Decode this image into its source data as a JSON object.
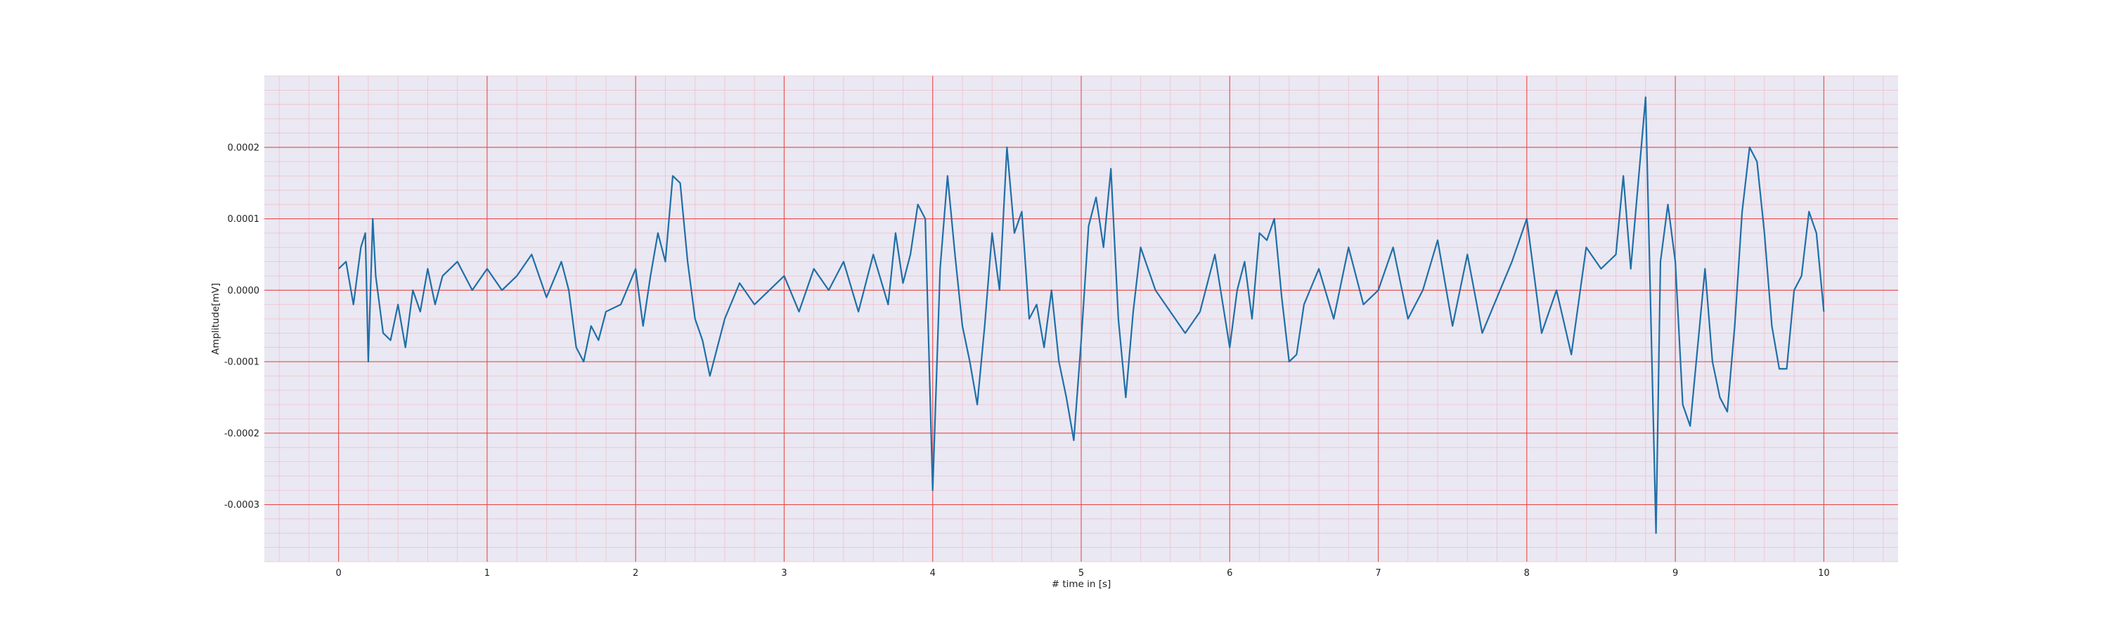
{
  "chart_data": {
    "type": "line",
    "title": "",
    "xlabel": "# time in [s]",
    "ylabel": "Amplitude[mV]",
    "xlim": [
      -0.5,
      10.5
    ],
    "ylim": [
      -0.00038,
      0.0003
    ],
    "x_ticks": [
      0,
      1,
      2,
      3,
      4,
      5,
      6,
      7,
      8,
      9,
      10
    ],
    "x_tick_labels": [
      "0",
      "1",
      "2",
      "3",
      "4",
      "5",
      "6",
      "7",
      "8",
      "9",
      "10"
    ],
    "y_ticks": [
      -0.0003,
      -0.0002,
      -0.0001,
      0.0,
      0.0001,
      0.0002
    ],
    "y_tick_labels": [
      "-0.0003",
      "-0.0002",
      "-0.0001",
      "0.0000",
      "0.0001",
      "0.0002"
    ],
    "grid": true,
    "major_grid_color": "#e74c4c",
    "minor_grid_color": "#f4a6b4",
    "background_color": "#eae8f2",
    "line_color": "#1f6fa8",
    "series": [
      {
        "x": [
          0.0,
          0.05,
          0.1,
          0.15,
          0.18,
          0.2,
          0.23,
          0.25,
          0.3,
          0.35,
          0.4,
          0.45,
          0.5,
          0.55,
          0.6,
          0.65,
          0.7,
          0.8,
          0.9,
          1.0,
          1.1,
          1.2,
          1.3,
          1.4,
          1.5,
          1.55,
          1.6,
          1.65,
          1.7,
          1.75,
          1.8,
          1.9,
          2.0,
          2.05,
          2.1,
          2.15,
          2.2,
          2.25,
          2.3,
          2.35,
          2.4,
          2.45,
          2.5,
          2.55,
          2.6,
          2.7,
          2.8,
          2.9,
          3.0,
          3.1,
          3.2,
          3.3,
          3.4,
          3.5,
          3.6,
          3.7,
          3.75,
          3.8,
          3.85,
          3.9,
          3.95,
          4.0,
          4.05,
          4.1,
          4.15,
          4.2,
          4.25,
          4.3,
          4.35,
          4.4,
          4.45,
          4.5,
          4.55,
          4.6,
          4.65,
          4.7,
          4.75,
          4.8,
          4.85,
          4.9,
          4.95,
          5.0,
          5.05,
          5.1,
          5.15,
          5.2,
          5.25,
          5.3,
          5.35,
          5.4,
          5.5,
          5.6,
          5.7,
          5.8,
          5.9,
          6.0,
          6.05,
          6.1,
          6.15,
          6.2,
          6.25,
          6.3,
          6.35,
          6.4,
          6.45,
          6.5,
          6.6,
          6.7,
          6.8,
          6.9,
          7.0,
          7.1,
          7.2,
          7.3,
          7.4,
          7.5,
          7.6,
          7.7,
          7.8,
          7.9,
          8.0,
          8.1,
          8.2,
          8.3,
          8.4,
          8.5,
          8.6,
          8.65,
          8.7,
          8.75,
          8.8,
          8.83,
          8.87,
          8.9,
          8.95,
          9.0,
          9.05,
          9.1,
          9.15,
          9.2,
          9.25,
          9.3,
          9.35,
          9.4,
          9.45,
          9.5,
          9.55,
          9.6,
          9.65,
          9.7,
          9.75,
          9.8,
          9.85,
          9.9,
          9.95,
          10.0
        ],
        "y": [
          3e-05,
          4e-05,
          -2e-05,
          6e-05,
          8e-05,
          -0.0001,
          0.0001,
          2e-05,
          -6e-05,
          -7e-05,
          -2e-05,
          -8e-05,
          0.0,
          -3e-05,
          3e-05,
          -2e-05,
          2e-05,
          4e-05,
          0.0,
          3e-05,
          0.0,
          2e-05,
          5e-05,
          -1e-05,
          4e-05,
          0.0,
          -8e-05,
          -0.0001,
          -5e-05,
          -7e-05,
          -3e-05,
          -2e-05,
          3e-05,
          -5e-05,
          2e-05,
          8e-05,
          4e-05,
          0.00016,
          0.00015,
          4e-05,
          -4e-05,
          -7e-05,
          -0.00012,
          -8e-05,
          -4e-05,
          1e-05,
          -2e-05,
          0.0,
          2e-05,
          -3e-05,
          3e-05,
          0.0,
          4e-05,
          -3e-05,
          5e-05,
          -2e-05,
          8e-05,
          1e-05,
          5e-05,
          0.00012,
          0.0001,
          -0.00028,
          3e-05,
          0.00016,
          5e-05,
          -5e-05,
          -0.0001,
          -0.00016,
          -5e-05,
          8e-05,
          0.0,
          0.0002,
          8e-05,
          0.00011,
          -4e-05,
          -2e-05,
          -8e-05,
          0.0,
          -0.0001,
          -0.00015,
          -0.00021,
          -7e-05,
          9e-05,
          0.00013,
          6e-05,
          0.00017,
          -4e-05,
          -0.00015,
          -3e-05,
          6e-05,
          0.0,
          -3e-05,
          -6e-05,
          -3e-05,
          5e-05,
          -8e-05,
          0.0,
          4e-05,
          -4e-05,
          8e-05,
          7e-05,
          0.0001,
          -1e-05,
          -0.0001,
          -9e-05,
          -2e-05,
          3e-05,
          -4e-05,
          6e-05,
          -2e-05,
          0.0,
          6e-05,
          -4e-05,
          0.0,
          7e-05,
          -5e-05,
          5e-05,
          -6e-05,
          -1e-05,
          4e-05,
          0.0001,
          -6e-05,
          0.0,
          -9e-05,
          6e-05,
          3e-05,
          5e-05,
          0.00016,
          3e-05,
          0.00015,
          0.00027,
          1e-05,
          -0.00034,
          4e-05,
          0.00012,
          4e-05,
          -0.00016,
          -0.00019,
          -8e-05,
          3e-05,
          -0.0001,
          -0.00015,
          -0.00017,
          -5e-05,
          0.00011,
          0.0002,
          0.00018,
          8e-05,
          -5e-05,
          -0.00011,
          -0.00011,
          0.0,
          2e-05,
          0.00011,
          8e-05,
          -3e-05
        ]
      }
    ]
  }
}
